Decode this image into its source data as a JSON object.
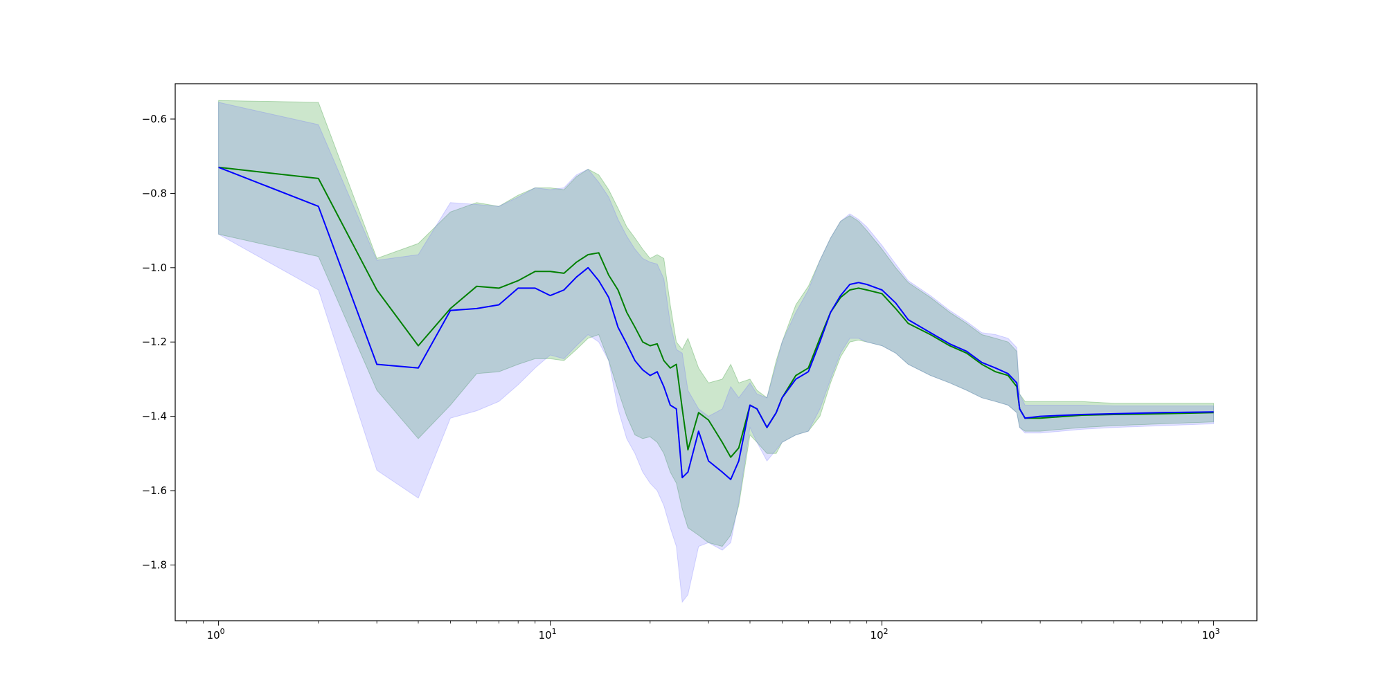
{
  "chart_data": {
    "type": "line",
    "title": "",
    "xlabel": "",
    "ylabel": "",
    "xscale": "log",
    "xlim": [
      0.74,
      1350
    ],
    "ylim": [
      -1.95,
      -0.505
    ],
    "grid": false,
    "legend": "none",
    "x_ticks": [
      {
        "value": 1,
        "base": "10",
        "exp": "0"
      },
      {
        "value": 10,
        "base": "10",
        "exp": "1"
      },
      {
        "value": 100,
        "base": "10",
        "exp": "2"
      },
      {
        "value": 1000,
        "base": "10",
        "exp": "3"
      }
    ],
    "y_ticks": [
      {
        "value": -0.6,
        "label": "−0.6"
      },
      {
        "value": -0.8,
        "label": "−0.8"
      },
      {
        "value": -1.0,
        "label": "−1.0"
      },
      {
        "value": -1.2,
        "label": "−1.2"
      },
      {
        "value": -1.4,
        "label": "−1.4"
      },
      {
        "value": -1.6,
        "label": "−1.6"
      },
      {
        "value": -1.8,
        "label": "−1.8"
      }
    ],
    "series": [
      {
        "color": "#008000",
        "band_color": "#008000",
        "x": [
          1,
          2,
          3,
          4,
          5,
          6,
          7,
          8,
          9,
          10,
          11,
          12,
          13,
          14,
          15,
          16,
          17,
          18,
          19,
          20,
          21,
          22,
          23,
          24,
          25,
          26,
          28,
          30,
          33,
          35,
          37,
          40,
          42,
          45,
          48,
          50,
          55,
          60,
          65,
          70,
          75,
          80,
          85,
          90,
          100,
          110,
          120,
          140,
          160,
          180,
          200,
          220,
          240,
          255,
          260,
          270,
          300,
          400,
          500,
          700,
          1000
        ],
        "y": [
          -0.73,
          -0.76,
          -1.06,
          -1.21,
          -1.11,
          -1.05,
          -1.055,
          -1.035,
          -1.01,
          -1.01,
          -1.015,
          -0.985,
          -0.965,
          -0.96,
          -1.02,
          -1.06,
          -1.12,
          -1.16,
          -1.2,
          -1.21,
          -1.205,
          -1.25,
          -1.27,
          -1.26,
          -1.38,
          -1.49,
          -1.39,
          -1.41,
          -1.47,
          -1.51,
          -1.485,
          -1.37,
          -1.38,
          -1.43,
          -1.39,
          -1.35,
          -1.29,
          -1.27,
          -1.19,
          -1.12,
          -1.08,
          -1.06,
          -1.055,
          -1.06,
          -1.07,
          -1.11,
          -1.15,
          -1.18,
          -1.21,
          -1.23,
          -1.26,
          -1.28,
          -1.29,
          -1.32,
          -1.38,
          -1.405,
          -1.405,
          -1.397,
          -1.395,
          -1.393,
          -1.39
        ],
        "upper": [
          -0.55,
          -0.555,
          -0.975,
          -0.935,
          -0.85,
          -0.825,
          -0.835,
          -0.805,
          -0.785,
          -0.785,
          -0.79,
          -0.755,
          -0.735,
          -0.75,
          -0.79,
          -0.84,
          -0.89,
          -0.92,
          -0.95,
          -0.975,
          -0.965,
          -0.975,
          -1.1,
          -1.2,
          -1.22,
          -1.19,
          -1.27,
          -1.31,
          -1.3,
          -1.26,
          -1.31,
          -1.3,
          -1.33,
          -1.35,
          -1.25,
          -1.2,
          -1.1,
          -1.05,
          -0.98,
          -0.92,
          -0.875,
          -0.86,
          -0.875,
          -0.9,
          -0.95,
          -1.0,
          -1.04,
          -1.08,
          -1.12,
          -1.15,
          -1.18,
          -1.19,
          -1.2,
          -1.225,
          -1.34,
          -1.36,
          -1.36,
          -1.36,
          -1.365,
          -1.365,
          -1.365
        ],
        "lower": [
          -0.91,
          -0.97,
          -1.33,
          -1.46,
          -1.37,
          -1.285,
          -1.28,
          -1.26,
          -1.245,
          -1.245,
          -1.25,
          -1.22,
          -1.19,
          -1.18,
          -1.25,
          -1.33,
          -1.4,
          -1.45,
          -1.46,
          -1.455,
          -1.47,
          -1.5,
          -1.55,
          -1.58,
          -1.65,
          -1.7,
          -1.72,
          -1.74,
          -1.75,
          -1.72,
          -1.64,
          -1.45,
          -1.47,
          -1.5,
          -1.5,
          -1.47,
          -1.45,
          -1.44,
          -1.4,
          -1.31,
          -1.24,
          -1.2,
          -1.195,
          -1.2,
          -1.21,
          -1.23,
          -1.26,
          -1.29,
          -1.31,
          -1.33,
          -1.35,
          -1.36,
          -1.37,
          -1.39,
          -1.43,
          -1.44,
          -1.44,
          -1.43,
          -1.425,
          -1.42,
          -1.415
        ]
      },
      {
        "color": "#0000ff",
        "band_color": "#6666ff",
        "x": [
          1,
          2,
          3,
          4,
          5,
          6,
          7,
          8,
          9,
          10,
          11,
          12,
          13,
          14,
          15,
          16,
          17,
          18,
          19,
          20,
          21,
          22,
          23,
          24,
          25,
          26,
          28,
          30,
          33,
          35,
          37,
          40,
          42,
          45,
          48,
          50,
          55,
          60,
          65,
          70,
          75,
          80,
          85,
          90,
          100,
          110,
          120,
          140,
          160,
          180,
          200,
          220,
          240,
          255,
          260,
          270,
          300,
          400,
          500,
          700,
          1000
        ],
        "y": [
          -0.73,
          -0.835,
          -1.26,
          -1.27,
          -1.115,
          -1.11,
          -1.1,
          -1.055,
          -1.055,
          -1.075,
          -1.06,
          -1.025,
          -1.0,
          -1.035,
          -1.08,
          -1.16,
          -1.205,
          -1.25,
          -1.275,
          -1.29,
          -1.28,
          -1.32,
          -1.37,
          -1.38,
          -1.565,
          -1.55,
          -1.44,
          -1.52,
          -1.55,
          -1.57,
          -1.52,
          -1.37,
          -1.38,
          -1.43,
          -1.39,
          -1.35,
          -1.3,
          -1.28,
          -1.2,
          -1.12,
          -1.075,
          -1.045,
          -1.04,
          -1.045,
          -1.06,
          -1.095,
          -1.14,
          -1.175,
          -1.205,
          -1.225,
          -1.255,
          -1.27,
          -1.285,
          -1.31,
          -1.38,
          -1.405,
          -1.4,
          -1.395,
          -1.393,
          -1.39,
          -1.388
        ],
        "upper": [
          -0.555,
          -0.615,
          -0.98,
          -0.965,
          -0.825,
          -0.83,
          -0.835,
          -0.81,
          -0.785,
          -0.79,
          -0.785,
          -0.75,
          -0.735,
          -0.77,
          -0.81,
          -0.87,
          -0.915,
          -0.95,
          -0.975,
          -0.985,
          -0.99,
          -1.03,
          -1.15,
          -1.22,
          -1.23,
          -1.33,
          -1.38,
          -1.4,
          -1.38,
          -1.32,
          -1.35,
          -1.31,
          -1.34,
          -1.35,
          -1.26,
          -1.2,
          -1.12,
          -1.06,
          -0.98,
          -0.92,
          -0.875,
          -0.855,
          -0.87,
          -0.89,
          -0.94,
          -0.99,
          -1.035,
          -1.075,
          -1.115,
          -1.145,
          -1.175,
          -1.18,
          -1.19,
          -1.215,
          -1.34,
          -1.37,
          -1.37,
          -1.37,
          -1.372,
          -1.372,
          -1.372
        ],
        "lower": [
          -0.91,
          -1.06,
          -1.545,
          -1.62,
          -1.405,
          -1.385,
          -1.36,
          -1.315,
          -1.27,
          -1.235,
          -1.245,
          -1.21,
          -1.18,
          -1.2,
          -1.25,
          -1.38,
          -1.46,
          -1.5,
          -1.55,
          -1.58,
          -1.6,
          -1.64,
          -1.7,
          -1.75,
          -1.9,
          -1.88,
          -1.75,
          -1.74,
          -1.76,
          -1.74,
          -1.63,
          -1.43,
          -1.47,
          -1.52,
          -1.49,
          -1.47,
          -1.45,
          -1.44,
          -1.38,
          -1.3,
          -1.23,
          -1.19,
          -1.19,
          -1.2,
          -1.21,
          -1.23,
          -1.26,
          -1.29,
          -1.31,
          -1.33,
          -1.35,
          -1.36,
          -1.37,
          -1.39,
          -1.43,
          -1.445,
          -1.445,
          -1.435,
          -1.43,
          -1.425,
          -1.42
        ]
      }
    ]
  }
}
